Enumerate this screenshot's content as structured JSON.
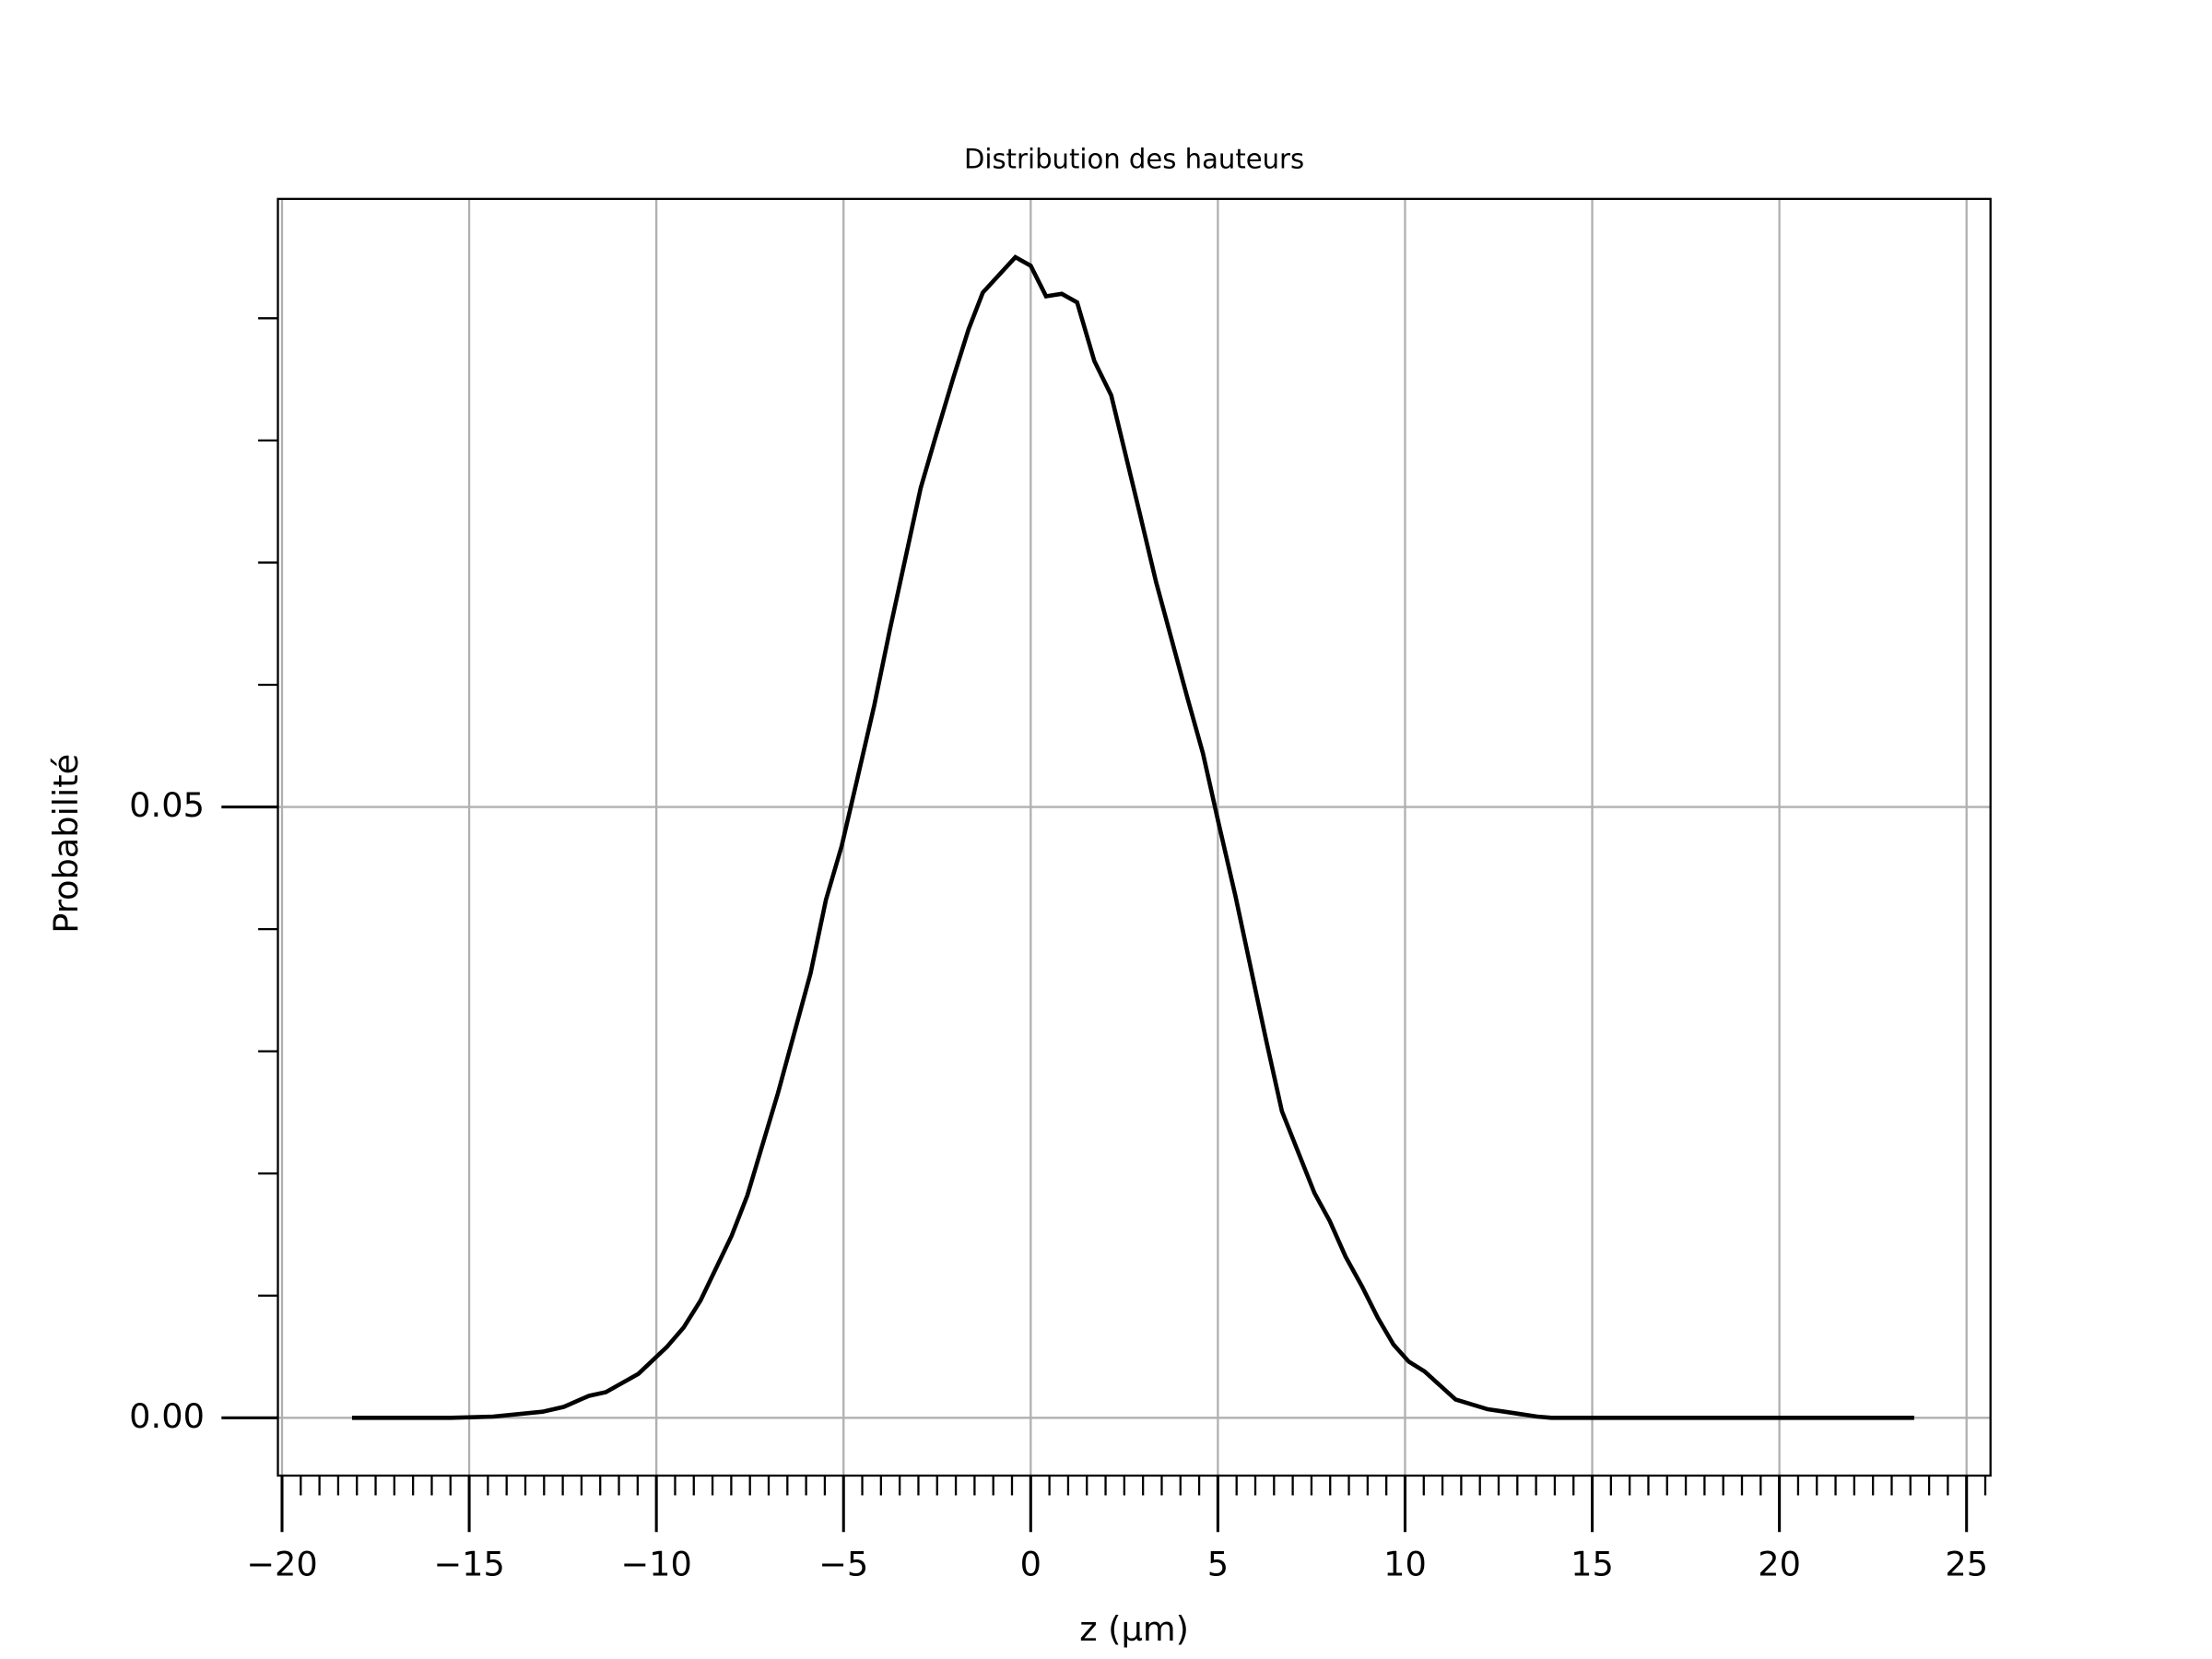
{
  "chart_data": {
    "type": "line",
    "title": "Distribution des hauteurs",
    "xlabel": "z (µm)",
    "ylabel": "Probabilité",
    "x": [
      -18.13,
      -15.49,
      -14.36,
      -13.04,
      -12.47,
      -11.8,
      -11.35,
      -10.48,
      -9.72,
      -9.27,
      -8.82,
      -7.99,
      -7.57,
      -6.75,
      -5.88,
      -5.47,
      -5.05,
      -4.64,
      -4.18,
      -3.77,
      -2.94,
      -2.53,
      -2.07,
      -1.66,
      -1.28,
      -0.83,
      -0.41,
      0,
      0.41,
      0.83,
      1.24,
      1.7,
      2.15,
      2.9,
      3.35,
      4.18,
      4.6,
      5.01,
      5.47,
      6.29,
      6.71,
      7.58,
      7.99,
      8.41,
      8.86,
      9.27,
      9.69,
      10.1,
      10.52,
      11.35,
      12.21,
      12.66,
      13.53,
      13.91,
      16.92,
      23.6
    ],
    "series": [
      {
        "name": "Probabilité",
        "color": "#000000",
        "values": [
          0,
          0,
          0.0001,
          0.0005,
          0.0009,
          0.0018,
          0.0021,
          0.0036,
          0.0058,
          0.0074,
          0.0096,
          0.0149,
          0.0182,
          0.0266,
          0.0364,
          0.0424,
          0.0468,
          0.0522,
          0.0583,
          0.0644,
          0.0761,
          0.0804,
          0.0851,
          0.0891,
          0.0921,
          0.0936,
          0.095,
          0.0943,
          0.0918,
          0.092,
          0.0913,
          0.0865,
          0.0837,
          0.0742,
          0.0684,
          0.059,
          0.0544,
          0.0488,
          0.0427,
          0.0309,
          0.0251,
          0.0184,
          0.0161,
          0.0132,
          0.0107,
          0.0082,
          0.006,
          0.0046,
          0.0038,
          0.0015,
          0.0007,
          0.0005,
          0.0001,
          0,
          0,
          0
        ]
      }
    ],
    "xlim": [
      -20.11,
      25.64
    ],
    "ylim": [
      -0.00473,
      0.09977
    ],
    "xticks": [
      {
        "value": -20,
        "label": "−20"
      },
      {
        "value": -15,
        "label": "−15"
      },
      {
        "value": -10,
        "label": "−10"
      },
      {
        "value": -5,
        "label": "−5"
      },
      0,
      5,
      10,
      15,
      20,
      25
    ],
    "yticks": [
      {
        "value": 0,
        "label": "0.00"
      },
      0.05
    ],
    "xminor": [
      -19.5,
      -19,
      -18.5,
      -18,
      -17.5,
      -17,
      -16.5,
      -16,
      -15.5,
      -14.5,
      -14,
      -13.5,
      -13,
      -12.5,
      -12,
      -11.5,
      -11,
      -10.5,
      -9.5,
      -9,
      -8.5,
      -8,
      -7.5,
      -7,
      -6.5,
      -6,
      -5.5,
      -4.5,
      -4,
      -3.5,
      -3,
      -2.5,
      -2,
      -1.5,
      -1,
      -0.5,
      0.5,
      1,
      1.5,
      2,
      2.5,
      3,
      3.5,
      4,
      4.5,
      5.5,
      6,
      6.5,
      7,
      7.5,
      8,
      8.5,
      9,
      9.5,
      10.5,
      11,
      11.5,
      12,
      12.5,
      13,
      13.5,
      14,
      14.5,
      15.5,
      16,
      16.5,
      17,
      17.5,
      18,
      18.5,
      19,
      19.5,
      20.5,
      21,
      21.5,
      22,
      22.5,
      23,
      23.5,
      24,
      24.5,
      25.5
    ],
    "yminor": [
      0.01,
      0.02,
      0.03,
      0.04,
      0.06,
      0.07,
      0.08,
      0.09
    ],
    "grid": true
  }
}
